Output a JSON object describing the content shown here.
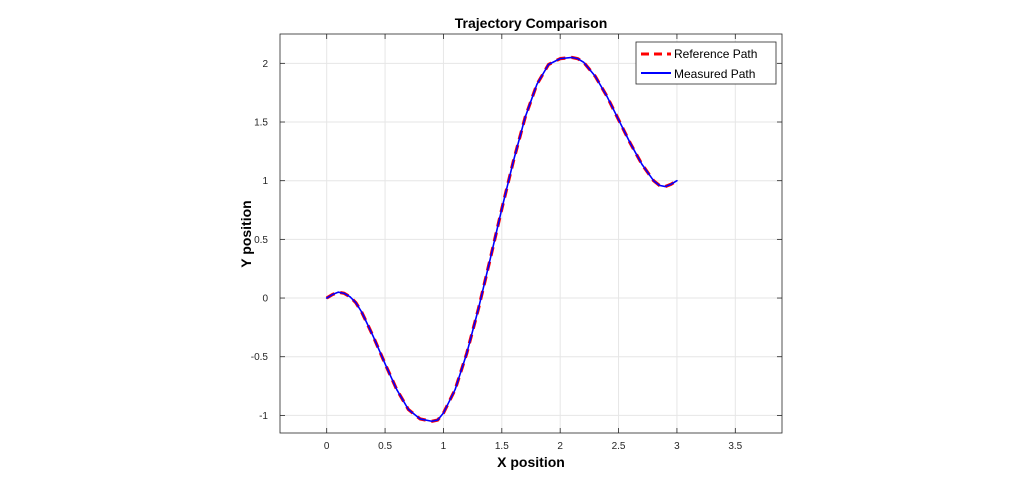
{
  "chart_data": {
    "type": "line",
    "title": "Trajectory Comparison",
    "xlabel": "X position",
    "ylabel": "Y position",
    "xlim": [
      -0.4,
      3.9
    ],
    "ylim": [
      -1.15,
      2.25
    ],
    "xticks": [
      0,
      0.5,
      1,
      1.5,
      2,
      2.5,
      3,
      3.5
    ],
    "xtick_labels": [
      "0",
      "0.5",
      "1",
      "1.5",
      "2",
      "2.5",
      "3",
      "3.5"
    ],
    "yticks": [
      -1,
      -0.5,
      0,
      0.5,
      1,
      1.5,
      2
    ],
    "ytick_labels": [
      "-1",
      "-0.5",
      "0",
      "0.5",
      "1",
      "1.5",
      "2"
    ],
    "grid": true,
    "legend_position": "top-right",
    "series": [
      {
        "name": "Reference Path",
        "color": "#ff0000",
        "style": "dashed",
        "x": [
          0,
          0.05,
          0.1,
          0.15,
          0.2,
          0.25,
          0.3,
          0.4,
          0.5,
          0.6,
          0.7,
          0.8,
          0.9,
          0.95,
          1.0,
          1.1,
          1.2,
          1.3,
          1.4,
          1.5,
          1.6,
          1.7,
          1.8,
          1.9,
          2.0,
          2.1,
          2.15,
          2.2,
          2.3,
          2.4,
          2.5,
          2.6,
          2.7,
          2.8,
          2.85,
          2.9,
          2.95,
          3.0
        ],
        "y": [
          0.0,
          0.03,
          0.05,
          0.04,
          0.01,
          -0.04,
          -0.12,
          -0.33,
          -0.56,
          -0.78,
          -0.95,
          -1.03,
          -1.05,
          -1.04,
          -0.98,
          -0.78,
          -0.47,
          -0.09,
          0.33,
          0.76,
          1.17,
          1.54,
          1.82,
          1.99,
          2.04,
          2.05,
          2.04,
          2.01,
          1.89,
          1.72,
          1.52,
          1.32,
          1.14,
          1.0,
          0.96,
          0.95,
          0.97,
          1.0
        ]
      },
      {
        "name": "Measured Path",
        "color": "#0000ff",
        "style": "solid",
        "x": [
          0,
          0.05,
          0.1,
          0.15,
          0.2,
          0.25,
          0.3,
          0.4,
          0.5,
          0.6,
          0.7,
          0.8,
          0.9,
          0.95,
          1.0,
          1.1,
          1.2,
          1.3,
          1.4,
          1.5,
          1.6,
          1.7,
          1.8,
          1.9,
          2.0,
          2.1,
          2.15,
          2.2,
          2.3,
          2.4,
          2.5,
          2.6,
          2.7,
          2.8,
          2.85,
          2.9,
          2.95,
          3.0
        ],
        "y": [
          0.0,
          0.03,
          0.05,
          0.04,
          0.01,
          -0.04,
          -0.12,
          -0.33,
          -0.56,
          -0.78,
          -0.95,
          -1.03,
          -1.05,
          -1.04,
          -0.98,
          -0.78,
          -0.47,
          -0.09,
          0.33,
          0.76,
          1.17,
          1.54,
          1.82,
          1.99,
          2.04,
          2.05,
          2.04,
          2.01,
          1.89,
          1.72,
          1.52,
          1.32,
          1.14,
          1.0,
          0.96,
          0.95,
          0.97,
          1.0
        ]
      }
    ]
  }
}
